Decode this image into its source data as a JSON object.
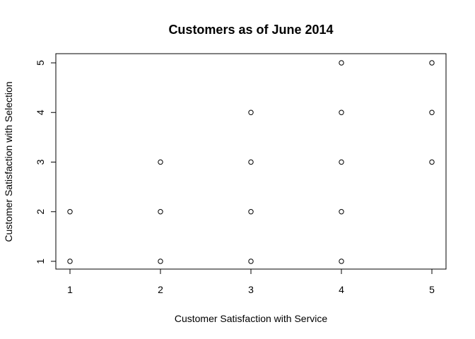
{
  "chart_data": {
    "type": "scatter",
    "title": "Customers as of June 2014",
    "xlabel": "Customer Satisfaction with Service",
    "ylabel": "Customer Satisfaction with Selection",
    "xlim": [
      1,
      5
    ],
    "ylim": [
      1,
      5
    ],
    "xticks": [
      "1",
      "2",
      "3",
      "4",
      "5"
    ],
    "yticks": [
      "1",
      "2",
      "3",
      "4",
      "5"
    ],
    "grid": false,
    "marker": "open-circle",
    "points": [
      {
        "x": 1,
        "y": 1
      },
      {
        "x": 1,
        "y": 2
      },
      {
        "x": 2,
        "y": 1
      },
      {
        "x": 2,
        "y": 2
      },
      {
        "x": 2,
        "y": 3
      },
      {
        "x": 3,
        "y": 1
      },
      {
        "x": 3,
        "y": 2
      },
      {
        "x": 3,
        "y": 3
      },
      {
        "x": 3,
        "y": 4
      },
      {
        "x": 4,
        "y": 1
      },
      {
        "x": 4,
        "y": 2
      },
      {
        "x": 4,
        "y": 3
      },
      {
        "x": 4,
        "y": 4
      },
      {
        "x": 4,
        "y": 5
      },
      {
        "x": 5,
        "y": 3
      },
      {
        "x": 5,
        "y": 4
      },
      {
        "x": 5,
        "y": 5
      }
    ]
  }
}
